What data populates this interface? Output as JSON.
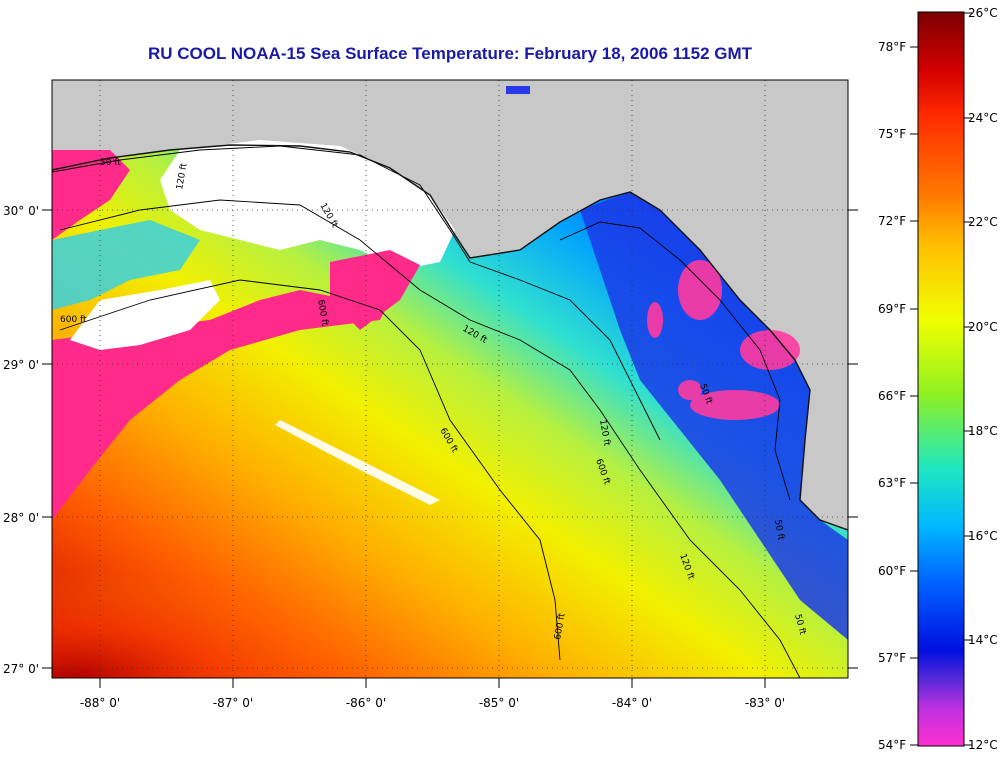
{
  "title": "RU COOL  NOAA-15  Sea Surface Temperature:  February 18, 2006 1152 GMT",
  "axes": {
    "x_ticks": [
      "-88° 0'",
      "-87° 0'",
      "-86° 0'",
      "-85° 0'",
      "-84° 0'",
      "-83° 0'"
    ],
    "y_ticks": [
      "30° 0'",
      "29° 0'",
      "28° 0'",
      "27° 0'"
    ]
  },
  "contour_labels": [
    "50 ft",
    "120 ft",
    "600 ft",
    "120 ft",
    "600 ft",
    "120 ft",
    "50 ft",
    "600 ft",
    "120 ft",
    "50 ft",
    "600 ft",
    "120 ft",
    "50 ft",
    "600 ft"
  ],
  "colorbar": {
    "fahrenheit": [
      "78°F",
      "75°F",
      "72°F",
      "69°F",
      "66°F",
      "63°F",
      "60°F",
      "57°F",
      "54°F"
    ],
    "celsius": [
      "26°C",
      "24°C",
      "22°C",
      "20°C",
      "18°C",
      "16°C",
      "14°C",
      "12°C"
    ],
    "colors": [
      "#7a0000",
      "#d40000",
      "#ff2a00",
      "#ff7a00",
      "#ffc000",
      "#f0ff00",
      "#90f020",
      "#20e8c0",
      "#00b8ff",
      "#0060ff",
      "#0010e0",
      "#5a2ad8",
      "#c030e0",
      "#ff30d0"
    ]
  },
  "colors": {
    "land": "#c8c8c8",
    "cloud": "#ffffff",
    "cold_flag": "#ff2a8a",
    "title": "#1a1aa8"
  }
}
